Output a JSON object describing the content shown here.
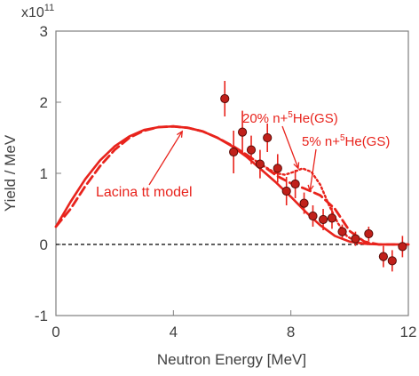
{
  "chart_data": {
    "type": "scatter",
    "xlabel": "Neutron Energy [MeV]",
    "ylabel": "Yield / MeV",
    "scale_label": "x10",
    "scale_exponent": "11",
    "xlim": [
      0,
      12
    ],
    "ylim": [
      -1,
      3
    ],
    "x_ticks": [
      0,
      4,
      8,
      12
    ],
    "y_ticks": [
      -1,
      0,
      1,
      2,
      3
    ],
    "x_tick_labels": [
      "0",
      "4",
      "8",
      "12"
    ],
    "y_tick_labels": [
      "-1",
      "0",
      "1",
      "2",
      "3"
    ],
    "grid": false,
    "colors": {
      "series": "#e8231c",
      "markers": "#c0201a",
      "zero_line": "#000000"
    },
    "data": {
      "name": "",
      "x": [
        5.75,
        6.05,
        6.35,
        6.65,
        6.95,
        7.2,
        7.55,
        7.85,
        8.15,
        8.45,
        8.75,
        9.1,
        9.4,
        9.75,
        10.2,
        10.65,
        11.15,
        11.45,
        11.8
      ],
      "y": [
        2.05,
        1.3,
        1.58,
        1.33,
        1.13,
        1.5,
        1.07,
        0.75,
        0.85,
        0.58,
        0.4,
        0.35,
        0.37,
        0.18,
        0.08,
        0.15,
        -0.17,
        -0.23,
        -0.03
      ],
      "err": [
        0.25,
        0.3,
        0.3,
        0.2,
        0.2,
        0.2,
        0.2,
        0.2,
        0.2,
        0.15,
        0.15,
        0.15,
        0.15,
        0.1,
        0.1,
        0.1,
        0.15,
        0.15,
        0.15
      ]
    },
    "series": [
      {
        "name": "Lacina tt model",
        "style": "solid",
        "x": [
          0,
          0.5,
          1,
          1.5,
          2,
          2.5,
          3,
          3.5,
          4,
          4.5,
          5,
          5.5,
          6,
          6.5,
          7,
          7.5,
          8,
          8.5,
          9,
          9.5,
          10,
          10.5,
          11,
          12
        ],
        "y": [
          0.25,
          0.6,
          0.92,
          1.18,
          1.38,
          1.52,
          1.61,
          1.65,
          1.66,
          1.64,
          1.59,
          1.5,
          1.38,
          1.23,
          1.05,
          0.87,
          0.67,
          0.46,
          0.27,
          0.12,
          0.04,
          0.01,
          0.0,
          0.0
        ]
      },
      {
        "name": "",
        "style": "dashed",
        "x": [
          0,
          0.5,
          1,
          1.5,
          2,
          2.5,
          3,
          3.5,
          4,
          4.5,
          5,
          5.5,
          6,
          6.5,
          7,
          7.5,
          8,
          8.5,
          9,
          9.5,
          10,
          10.5,
          11,
          12
        ],
        "y": [
          0.25,
          0.5,
          0.82,
          1.1,
          1.33,
          1.5,
          1.6,
          1.65,
          1.66,
          1.64,
          1.59,
          1.5,
          1.39,
          1.26,
          1.12,
          0.97,
          0.86,
          0.78,
          0.69,
          0.5,
          0.19,
          0.04,
          0.0,
          0.0
        ]
      },
      {
        "name": "",
        "style": "dotted",
        "x": [
          5.5,
          6,
          6.5,
          7,
          7.5,
          7.8,
          8.1,
          8.4,
          8.7,
          9.0,
          9.3,
          9.6,
          9.9,
          10.2,
          10.5,
          11,
          12
        ],
        "y": [
          1.5,
          1.39,
          1.26,
          1.12,
          1.0,
          0.98,
          1.02,
          1.07,
          1.02,
          0.84,
          0.55,
          0.3,
          0.12,
          0.04,
          0.01,
          0.0,
          0.0
        ]
      }
    ],
    "annotations": {
      "lacina_label": "Lacina tt model",
      "ann20_pre": "20% n+",
      "ann20_sup": "5",
      "ann20_post": "He(GS)",
      "ann5_pre": "5% n+",
      "ann5_sup": "5",
      "ann5_post": "He(GS)"
    }
  }
}
